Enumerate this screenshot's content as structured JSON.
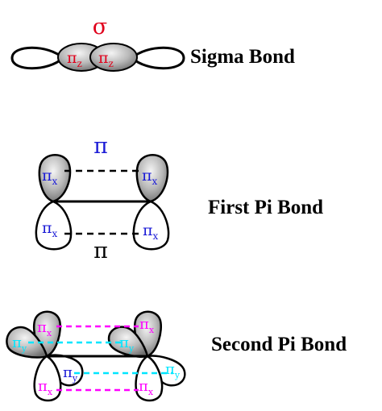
{
  "colors": {
    "red": "#e0001b",
    "blue": "#1a1ad6",
    "magenta": "#ff00ff",
    "cyan": "#00e6ff",
    "black": "#000000"
  },
  "sigma": {
    "symbol": "σ",
    "left_lobe": {
      "greek": "π",
      "sub": "z"
    },
    "right_lobe": {
      "greek": "π",
      "sub": "z"
    },
    "title": "Sigma Bond"
  },
  "first_pi": {
    "top_symbol": "π",
    "bottom_symbol": "π",
    "left_top": {
      "greek": "π",
      "sub": "x"
    },
    "right_top": {
      "greek": "π",
      "sub": "x"
    },
    "left_bottom": {
      "greek": "π",
      "sub": "x"
    },
    "right_bottom": {
      "greek": "π",
      "sub": "x"
    },
    "title": "First Pi Bond"
  },
  "second_pi": {
    "left_top": {
      "greek": "π",
      "sub": "x"
    },
    "right_top": {
      "greek": "π",
      "sub": "x"
    },
    "left_side": {
      "greek": "π",
      "sub": "y"
    },
    "right_side_upper": {
      "greek": "π",
      "sub": "y"
    },
    "middle_lower": {
      "greek": "π",
      "sub": "y"
    },
    "right_side_lower": {
      "greek": "π",
      "sub": "y"
    },
    "left_bottom": {
      "greek": "π",
      "sub": "x"
    },
    "right_bottom": {
      "greek": "π",
      "sub": "x"
    },
    "title": "Second Pi Bond"
  }
}
